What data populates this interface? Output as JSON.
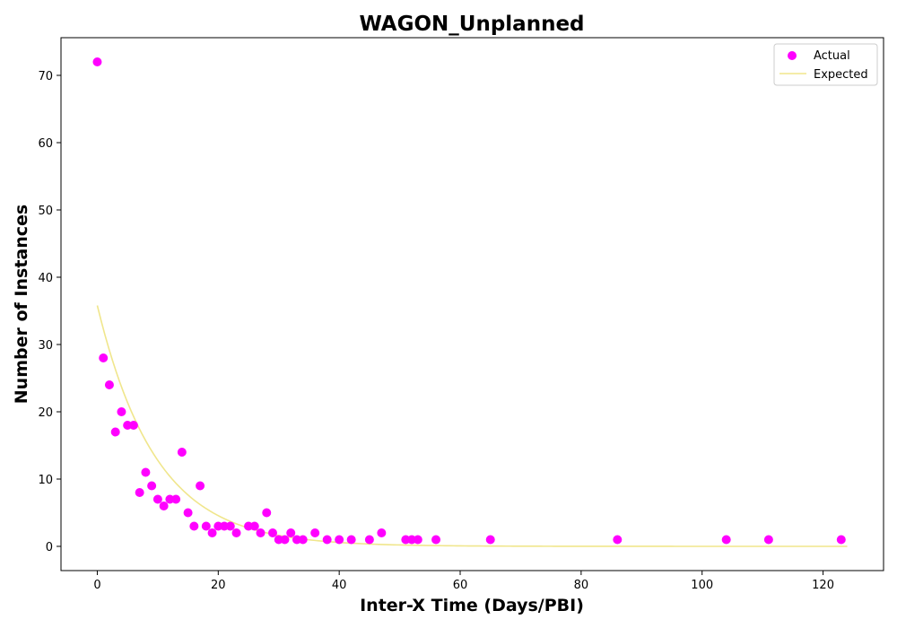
{
  "chart_data": {
    "type": "scatter",
    "title": "WAGON_Unplanned",
    "xlabel": "Inter-X Time (Days/PBI)",
    "ylabel": "Number of Instances",
    "xlim": [
      -6,
      130
    ],
    "ylim": [
      -3.6,
      75.6
    ],
    "xticks": [
      0,
      20,
      40,
      60,
      80,
      100,
      120
    ],
    "yticks": [
      0,
      10,
      20,
      30,
      40,
      50,
      60,
      70
    ],
    "grid": false,
    "legend_position": "top-right",
    "series": [
      {
        "name": "Actual",
        "kind": "scatter",
        "color": "#ff00ff",
        "x": [
          0,
          1,
          2,
          3,
          4,
          5,
          6,
          7,
          8,
          9,
          10,
          11,
          12,
          13,
          14,
          15,
          16,
          17,
          18,
          19,
          20,
          21,
          22,
          23,
          25,
          26,
          27,
          28,
          29,
          30,
          31,
          32,
          33,
          34,
          36,
          38,
          40,
          42,
          45,
          47,
          51,
          52,
          53,
          56,
          65,
          86,
          104,
          111,
          123
        ],
        "y": [
          72,
          28,
          24,
          17,
          20,
          18,
          18,
          8,
          11,
          9,
          7,
          6,
          7,
          7,
          14,
          5,
          3,
          9,
          3,
          2,
          3,
          3,
          3,
          2,
          3,
          3,
          2,
          5,
          2,
          1,
          1,
          2,
          1,
          1,
          2,
          1,
          1,
          1,
          1,
          2,
          1,
          1,
          1,
          1,
          1,
          1,
          1,
          1,
          1
        ]
      },
      {
        "name": "Expected",
        "kind": "line",
        "color": "#f0e68c",
        "function": "35.8 * exp(-0.103 * x)",
        "domain": [
          0,
          124
        ]
      }
    ]
  }
}
